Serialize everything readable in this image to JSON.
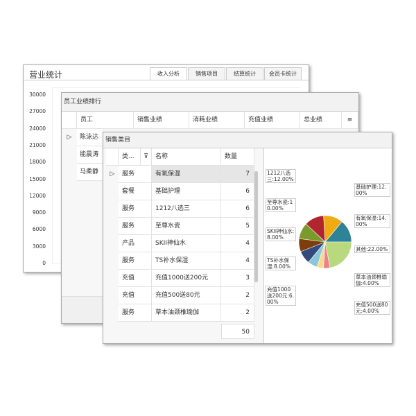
{
  "revenue_window": {
    "title": "营业统计",
    "tabs": [
      "收入分析",
      "销售项目",
      "结算统计",
      "会员卡统计"
    ],
    "y_ticks": [
      "30000",
      "27000",
      "24000",
      "21000",
      "18000",
      "15000",
      "12000",
      "9000",
      "6000",
      "3000",
      "0"
    ]
  },
  "staff_window": {
    "title": "员工业绩排行",
    "columns": [
      "员工",
      "销售业绩",
      "消耗业绩",
      "充值业绩",
      "总业绩"
    ],
    "rows": [
      "陈泳达",
      "能晨涛",
      "马柔静"
    ]
  },
  "category_window": {
    "title": "销售类目",
    "columns": [
      "类...",
      "名称",
      "数量"
    ],
    "rows": [
      [
        "服务",
        "有氧保湿",
        "7"
      ],
      [
        "套餐",
        "基础护理",
        "6"
      ],
      [
        "服务",
        "1212八选三",
        "6"
      ],
      [
        "服务",
        "至尊水瓷",
        "5"
      ],
      [
        "产品",
        "SKII神仙水",
        "4"
      ],
      [
        "服务",
        "TS补水保湿",
        "4"
      ],
      [
        "充值",
        "充值1000送200元",
        "3"
      ],
      [
        "充值",
        "充值500送80元",
        "2"
      ],
      [
        "服务",
        "草本油颈椎瑜伽",
        "2"
      ]
    ],
    "total": "50"
  },
  "chart_data": {
    "type": "pie",
    "slices": [
      {
        "name": "有氧保湿",
        "value": 14,
        "label": "有氧保湿:14.00%",
        "color": "#2e8396"
      },
      {
        "name": "基础护理",
        "value": 12,
        "label": "基础护理:12.00%",
        "color": "#f0ab12"
      },
      {
        "name": "1212八选三",
        "value": 12,
        "label": "1212八选三:12.00%",
        "color": "#b0262c"
      },
      {
        "name": "至尊水瓷",
        "value": 10,
        "label": "至尊水瓷:10.00%",
        "color": "#7b9a2c"
      },
      {
        "name": "SKII神仙水",
        "value": 8,
        "label": "SKII神仙水:8.00%",
        "color": "#7f3d0c"
      },
      {
        "name": "TS补水保湿",
        "value": 8,
        "label": "TS补水保湿:8.00%",
        "color": "#354a7c"
      },
      {
        "name": "充值1000送200元",
        "value": 6,
        "label": "充值1000送200元:6.00%",
        "color": "#8ac7d8"
      },
      {
        "name": "充值500送80元",
        "value": 4,
        "label": "充值500送80元:4.00%",
        "color": "#fbd98a"
      },
      {
        "name": "草本油颈椎瑜伽",
        "value": 4,
        "label": "草本油颈椎瑜伽:4.00%",
        "color": "#e9838b"
      },
      {
        "name": "其他",
        "value": 22,
        "label": "其他:22.00%",
        "color": "#b9d97f"
      }
    ]
  }
}
